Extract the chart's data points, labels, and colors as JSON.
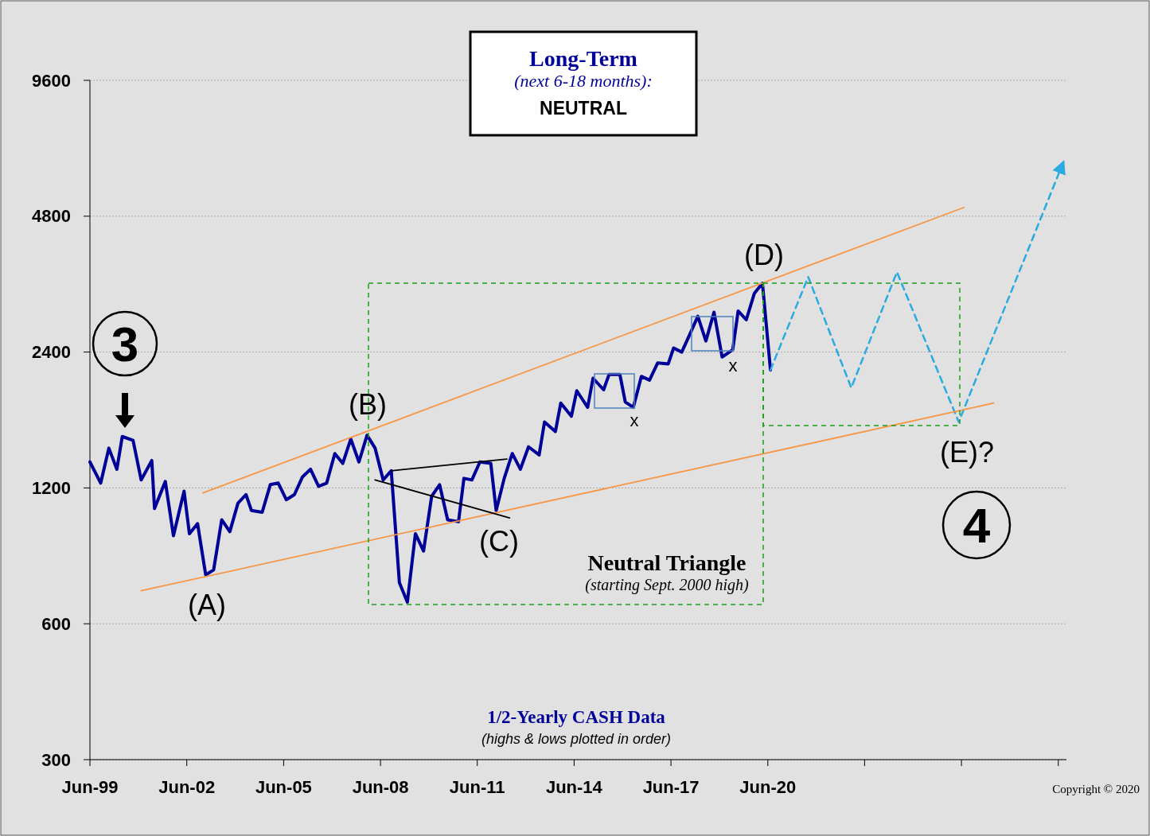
{
  "chart_data": {
    "type": "line",
    "title": "Long-Term",
    "subtitle": "(next 6-18 months):",
    "xlim": [
      "1999-06",
      "2029-09"
    ],
    "xticks": [
      {
        "value": "1999-06",
        "label": "Jun-99"
      },
      {
        "value": "2002-06",
        "label": "Jun-02"
      },
      {
        "value": "2005-06",
        "label": "Jun-05"
      },
      {
        "value": "2008-06",
        "label": "Jun-08"
      },
      {
        "value": "2011-06",
        "label": "Jun-11"
      },
      {
        "value": "2014-06",
        "label": "Jun-14"
      },
      {
        "value": "2017-06",
        "label": "Jun-17"
      },
      {
        "value": "2020-06",
        "label": "Jun-20"
      },
      {
        "value": "2023-06",
        "label": null
      },
      {
        "value": "2026-06",
        "label": null
      },
      {
        "value": "2029-06",
        "label": null
      }
    ],
    "ylim": [
      300,
      9600
    ],
    "yticks": [
      300,
      600,
      1200,
      2400,
      4800,
      9600
    ],
    "log": "y",
    "grid": "y",
    "marker": "none",
    "series": [
      {
        "color": "#000099",
        "line_style": "solid",
        "x": [
          "1999-06",
          "1999-10",
          "2000-01",
          "2000-04",
          "2000-06",
          "2000-10",
          "2001-01",
          "2001-05",
          "2001-06",
          "2001-10",
          "2002-01",
          "2002-05",
          "2002-07",
          "2002-10",
          "2003-01",
          "2003-04",
          "2003-07",
          "2003-10",
          "2004-01",
          "2004-04",
          "2004-06",
          "2004-10",
          "2005-01",
          "2005-04",
          "2005-07",
          "2005-10",
          "2006-01",
          "2006-04",
          "2006-07",
          "2006-10",
          "2007-01",
          "2007-04",
          "2007-07",
          "2007-10",
          "2008-01",
          "2008-04",
          "2008-07",
          "2008-10",
          "2009-01",
          "2009-04",
          "2009-07",
          "2009-10",
          "2010-01",
          "2010-04",
          "2010-07",
          "2010-11",
          "2011-01",
          "2011-04",
          "2011-07",
          "2011-11",
          "2012-01",
          "2012-04",
          "2012-07",
          "2012-10",
          "2013-01",
          "2013-05",
          "2013-07",
          "2013-11",
          "2014-01",
          "2014-05",
          "2014-07",
          "2014-11",
          "2015-01",
          "2015-05",
          "2015-07",
          "2015-11",
          "2016-01",
          "2016-04",
          "2016-07",
          "2016-10",
          "2017-01",
          "2017-05",
          "2017-07",
          "2017-10",
          "2018-01",
          "2018-04",
          "2018-07",
          "2018-10",
          "2019-01",
          "2019-05",
          "2019-07",
          "2019-10",
          "2020-01",
          "2020-04",
          "2020-07"
        ],
        "values": [
          1370,
          1230,
          1470,
          1320,
          1560,
          1530,
          1250,
          1380,
          1080,
          1240,
          940,
          1180,
          950,
          1000,
          770,
          790,
          1020,
          960,
          1110,
          1160,
          1070,
          1060,
          1220,
          1230,
          1130,
          1160,
          1270,
          1320,
          1210,
          1230,
          1430,
          1360,
          1540,
          1370,
          1570,
          1470,
          1250,
          1310,
          740,
          670,
          950,
          870,
          1150,
          1220,
          1020,
          1010,
          1260,
          1250,
          1370,
          1360,
          1070,
          1260,
          1430,
          1320,
          1480,
          1420,
          1680,
          1600,
          1850,
          1730,
          1970,
          1810,
          2100,
          1980,
          2140,
          2140,
          1860,
          1810,
          2120,
          2080,
          2270,
          2260,
          2450,
          2400,
          2630,
          2880,
          2540,
          2940,
          2340,
          2430,
          2960,
          2830,
          3240,
          3410,
          2190
        ]
      },
      {
        "color": "#29abe2",
        "line_style": "dashed",
        "x": [
          "2020-07",
          "2021-09",
          "2023-01",
          "2024-06",
          "2026-05",
          "2029-08"
        ],
        "values": [
          2190,
          3520,
          2000,
          3610,
          1680,
          6350
        ]
      },
      {
        "color": "#f79646",
        "line_style": "solid",
        "x": [
          "2002-12",
          "2026-07"
        ],
        "values": [
          1170,
          5020
        ]
      },
      {
        "color": "#f79646",
        "line_style": "solid",
        "x": [
          "2001-01",
          "2027-06"
        ],
        "values": [
          710,
          1850
        ]
      },
      {
        "color": "#000000",
        "line_style": "solid",
        "x": [
          "2008-10",
          "2012-05"
        ],
        "values": [
          1310,
          1390
        ]
      },
      {
        "color": "#000000",
        "line_style": "solid",
        "x": [
          "2008-04",
          "2012-06"
        ],
        "values": [
          1250,
          1030
        ]
      }
    ],
    "annotations": [
      "(A)",
      "(B)",
      "(C)",
      "(D)",
      "(E)?",
      "x",
      "x",
      "3",
      "4",
      "NEUTRAL",
      "Neutral Triangle",
      "(starting Sept. 2000 high)",
      "1/2-Yearly CASH Data",
      "(highs & lows plotted in order)",
      "Copyright © 2020"
    ]
  }
}
